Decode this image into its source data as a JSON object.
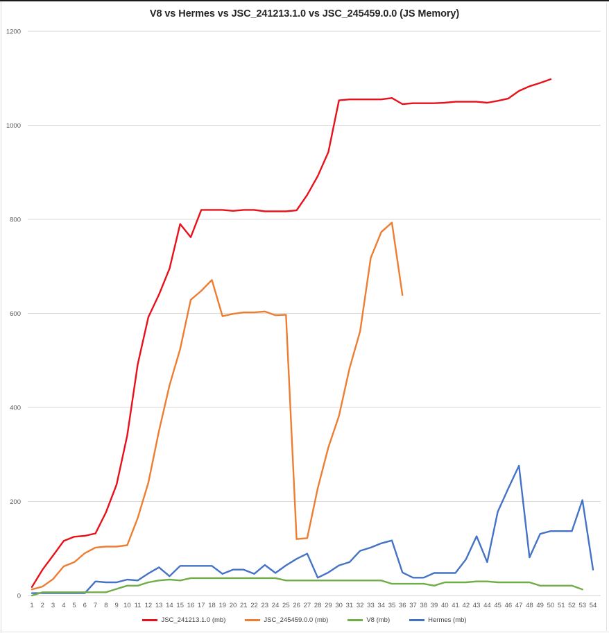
{
  "chart_data": {
    "type": "line",
    "title": "V8 vs Hermes vs  JSC_241213.1.0 vs JSC_245459.0.0  (JS Memory)",
    "xlabel": "",
    "ylabel": "",
    "ylim": [
      0,
      1200
    ],
    "yticks": [
      0,
      200,
      400,
      600,
      800,
      1000,
      1200
    ],
    "grid": true,
    "legend_position": "bottom",
    "categories": [
      1,
      2,
      3,
      4,
      5,
      6,
      7,
      8,
      9,
      10,
      11,
      12,
      13,
      14,
      15,
      16,
      17,
      18,
      19,
      20,
      21,
      22,
      23,
      24,
      25,
      26,
      27,
      28,
      29,
      30,
      31,
      32,
      33,
      34,
      35,
      36,
      37,
      38,
      39,
      40,
      41,
      42,
      43,
      44,
      45,
      46,
      47,
      48,
      49,
      50,
      51,
      52,
      53,
      54
    ],
    "series": [
      {
        "name": "JSC_241213.1.0 (mb)",
        "color": "#e8101a",
        "values": [
          18,
          55,
          85,
          116,
          125,
          127,
          132,
          177,
          236,
          340,
          492,
          592,
          640,
          695,
          790,
          762,
          820,
          820,
          820,
          818,
          820,
          820,
          817,
          817,
          817,
          819,
          852,
          892,
          943,
          1053,
          1055,
          1055,
          1055,
          1055,
          1058,
          1045,
          1047,
          1047,
          1047,
          1048,
          1050,
          1050,
          1050,
          1048,
          1052,
          1057,
          1073,
          1083,
          1090,
          1098
        ]
      },
      {
        "name": "JSC_245459.0.0 (mb)",
        "color": "#ed7d31",
        "values": [
          13,
          19,
          35,
          62,
          71,
          90,
          102,
          104,
          104,
          107,
          165,
          240,
          350,
          447,
          524,
          629,
          648,
          671,
          594,
          599,
          602,
          602,
          604,
          596,
          597,
          120,
          122,
          228,
          315,
          382,
          483,
          562,
          718,
          773,
          793,
          639
        ]
      },
      {
        "name": "V8 (mb)",
        "color": "#70ad47",
        "values": [
          0,
          7,
          7,
          7,
          7,
          7,
          7,
          7,
          14,
          21,
          21,
          28,
          32,
          34,
          32,
          37,
          37,
          37,
          37,
          37,
          37,
          37,
          37,
          37,
          32,
          32,
          32,
          32,
          32,
          32,
          32,
          32,
          32,
          32,
          25,
          25,
          25,
          25,
          21,
          28,
          28,
          28,
          30,
          30,
          28,
          28,
          28,
          28,
          21,
          21,
          21,
          21,
          13
        ]
      },
      {
        "name": "Hermes (mb)",
        "color": "#4472c4",
        "values": [
          5,
          5,
          5,
          5,
          5,
          5,
          30,
          28,
          28,
          34,
          32,
          47,
          60,
          41,
          63,
          63,
          63,
          63,
          46,
          55,
          55,
          46,
          65,
          48,
          64,
          78,
          89,
          38,
          49,
          64,
          71,
          95,
          102,
          111,
          117,
          49,
          38,
          38,
          48,
          48,
          48,
          77,
          126,
          71,
          178,
          228,
          276,
          81,
          131,
          137,
          137,
          137,
          203,
          55
        ]
      }
    ]
  },
  "chart": {
    "title": "V8 vs Hermes vs  JSC_241213.1.0 vs JSC_245459.0.0  (JS Memory)",
    "legend": [
      {
        "label": "JSC_241213.1.0 (mb)",
        "color": "#e8101a"
      },
      {
        "label": "JSC_245459.0.0 (mb)",
        "color": "#ed7d31"
      },
      {
        "label": "V8 (mb)",
        "color": "#70ad47"
      },
      {
        "label": "Hermes (mb)",
        "color": "#4472c4"
      }
    ]
  }
}
